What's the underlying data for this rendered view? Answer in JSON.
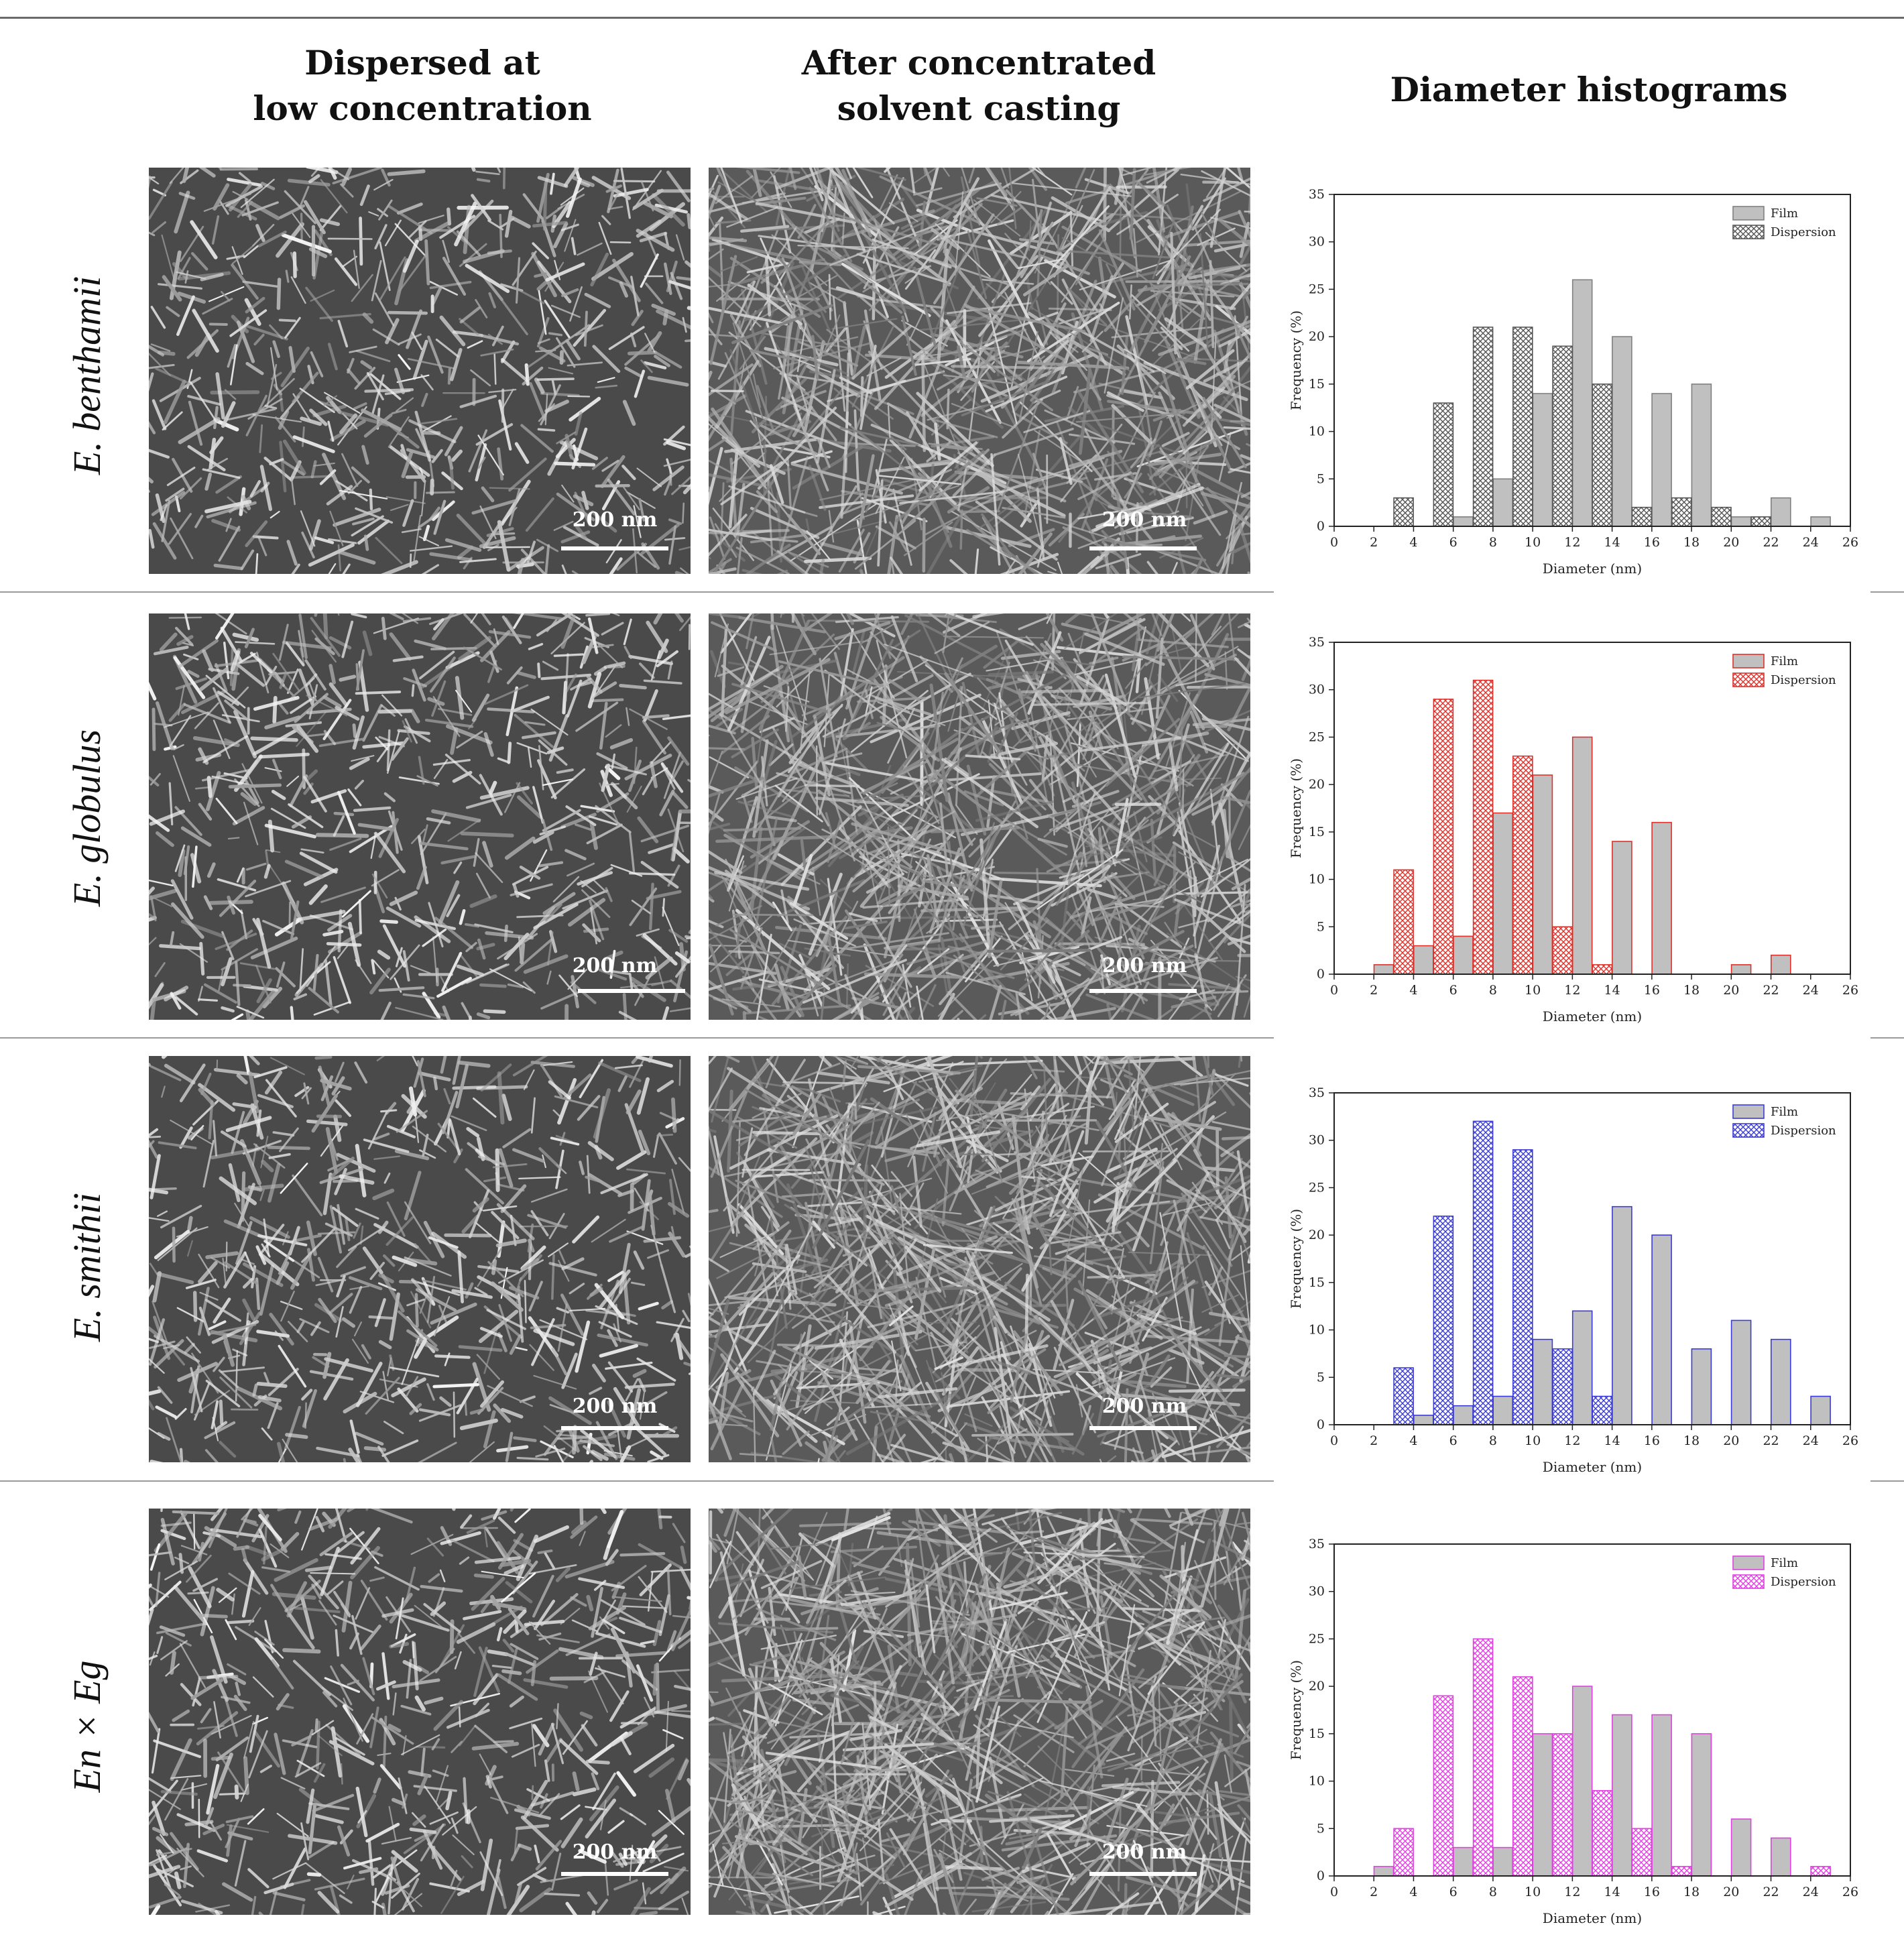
{
  "headers": {
    "col1_line1": "Dispersed at",
    "col1_line2": "low concentration",
    "col2_line1": "After concentrated",
    "col2_line2": "solvent casting",
    "col3": "Diameter histograms"
  },
  "rows": [
    {
      "label": "E. benthamii",
      "scale_bar_left": "200 nm",
      "scale_bar_right": "200 nm"
    },
    {
      "label": "E. globulus",
      "scale_bar_left": "200 nm",
      "scale_bar_right": "200 nm"
    },
    {
      "label": "E. smithii",
      "scale_bar_left": "200 nm",
      "scale_bar_right": "200 nm"
    },
    {
      "label": "En × Eg",
      "scale_bar_left": "200 nm",
      "scale_bar_right": "200 nm"
    }
  ],
  "images": {
    "left_description": "SEM micrograph, dispersed at low concentration",
    "right_description": "SEM micrograph, after concentrated solvent casting"
  },
  "colors": {
    "film_fill": "#c0c0c0",
    "benthamii_dispersion": "#555555",
    "globulus_dispersion": "#e0302a",
    "smithii_dispersion": "#3b3bd6",
    "hybrid_dispersion": "#e040e0"
  },
  "chart_data": [
    {
      "type": "bar",
      "xlabel": "Diameter (nm)",
      "ylabel": "Frequency (%)",
      "xlim": [
        0,
        26
      ],
      "ylim": [
        0,
        35
      ],
      "xticks": [
        0,
        2,
        4,
        6,
        8,
        10,
        12,
        14,
        16,
        18,
        20,
        22,
        24,
        26
      ],
      "yticks": [
        0,
        5,
        10,
        15,
        20,
        25,
        30,
        35
      ],
      "legend": "top-right",
      "series": [
        {
          "name": "Film",
          "color": "#808080",
          "pattern": "solid",
          "x": [
            6.5,
            8.5,
            10.5,
            12.5,
            14.5,
            16.5,
            18.5,
            20.5,
            22.5,
            24.5
          ],
          "values": [
            1,
            5,
            14,
            26,
            20,
            14,
            15,
            1,
            3,
            1
          ]
        },
        {
          "name": "Dispersion",
          "color": "#555555",
          "pattern": "crosshatch",
          "x": [
            3.5,
            5.5,
            7.5,
            9.5,
            11.5,
            13.5,
            15.5,
            17.5,
            19.5,
            21.5
          ],
          "values": [
            3,
            13,
            21,
            21,
            19,
            15,
            2,
            3,
            2,
            1
          ]
        }
      ]
    },
    {
      "type": "bar",
      "xlabel": "Diameter (nm)",
      "ylabel": "Frequency (%)",
      "xlim": [
        0,
        26
      ],
      "ylim": [
        0,
        35
      ],
      "xticks": [
        0,
        2,
        4,
        6,
        8,
        10,
        12,
        14,
        16,
        18,
        20,
        22,
        24,
        26
      ],
      "yticks": [
        0,
        5,
        10,
        15,
        20,
        25,
        30,
        35
      ],
      "legend": "top-right",
      "series": [
        {
          "name": "Film",
          "color": "#e0302a",
          "pattern": "solid",
          "x": [
            2.5,
            4.5,
            6.5,
            8.5,
            10.5,
            12.5,
            14.5,
            16.5,
            20.5,
            22.5
          ],
          "values": [
            1,
            3,
            4,
            17,
            21,
            25,
            14,
            16,
            1,
            2
          ]
        },
        {
          "name": "Dispersion",
          "color": "#e0302a",
          "pattern": "crosshatch",
          "x": [
            3.5,
            5.5,
            7.5,
            9.5,
            11.5,
            13.5
          ],
          "values": [
            11,
            29,
            31,
            23,
            5,
            1
          ]
        }
      ]
    },
    {
      "type": "bar",
      "xlabel": "Diameter (nm)",
      "ylabel": "Frequency (%)",
      "xlim": [
        0,
        26
      ],
      "ylim": [
        0,
        35
      ],
      "xticks": [
        0,
        2,
        4,
        6,
        8,
        10,
        12,
        14,
        16,
        18,
        20,
        22,
        24,
        26
      ],
      "yticks": [
        0,
        5,
        10,
        15,
        20,
        25,
        30,
        35
      ],
      "legend": "top-right",
      "series": [
        {
          "name": "Film",
          "color": "#3b3bd6",
          "pattern": "solid",
          "x": [
            4.5,
            6.5,
            8.5,
            10.5,
            12.5,
            14.5,
            16.5,
            18.5,
            20.5,
            22.5,
            24.5
          ],
          "values": [
            1,
            2,
            3,
            9,
            12,
            23,
            20,
            8,
            11,
            9,
            3
          ]
        },
        {
          "name": "Dispersion",
          "color": "#3b3bd6",
          "pattern": "crosshatch",
          "x": [
            3.5,
            5.5,
            7.5,
            9.5,
            11.5,
            13.5
          ],
          "values": [
            6,
            22,
            32,
            29,
            8,
            3
          ]
        }
      ]
    },
    {
      "type": "bar",
      "xlabel": "Diameter (nm)",
      "ylabel": "Frequency (%)",
      "xlim": [
        0,
        26
      ],
      "ylim": [
        0,
        35
      ],
      "xticks": [
        0,
        2,
        4,
        6,
        8,
        10,
        12,
        14,
        16,
        18,
        20,
        22,
        24,
        26
      ],
      "yticks": [
        0,
        5,
        10,
        15,
        20,
        25,
        30,
        35
      ],
      "legend": "top-right",
      "series": [
        {
          "name": "Film",
          "color": "#e040e0",
          "pattern": "solid",
          "x": [
            2.5,
            6.5,
            8.5,
            10.5,
            12.5,
            14.5,
            16.5,
            18.5,
            20.5,
            22.5
          ],
          "values": [
            1,
            3,
            3,
            15,
            20,
            17,
            17,
            15,
            6,
            4
          ]
        },
        {
          "name": "Dispersion",
          "color": "#e040e0",
          "pattern": "crosshatch",
          "x": [
            3.5,
            5.5,
            7.5,
            9.5,
            11.5,
            13.5,
            15.5,
            17.5,
            24.5
          ],
          "values": [
            5,
            19,
            25,
            21,
            15,
            9,
            5,
            1,
            1
          ]
        }
      ]
    }
  ]
}
